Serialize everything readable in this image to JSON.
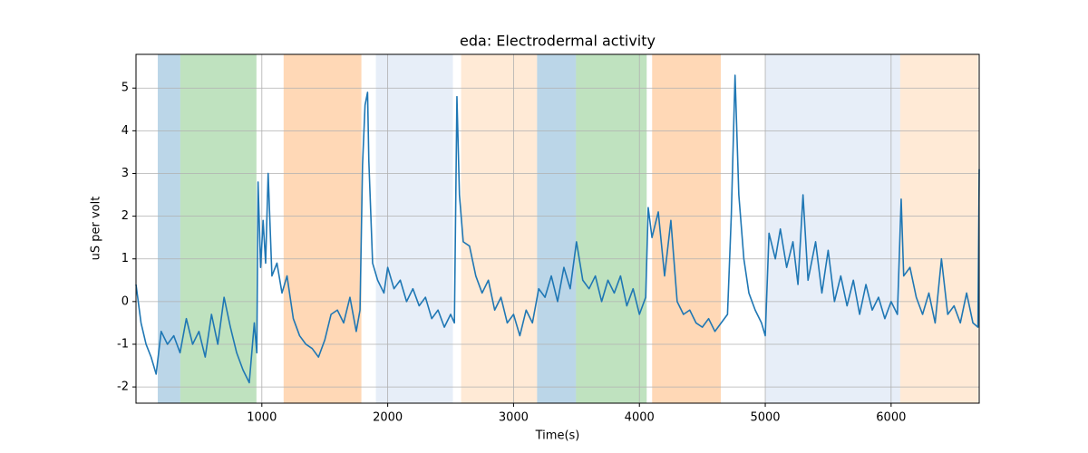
{
  "chart_data": {
    "type": "line",
    "title": "eda: Electrodermal activity",
    "xlabel": "Time(s)",
    "ylabel": "uS per volt",
    "xlim": [
      0,
      6700
    ],
    "ylim": [
      -2.38,
      5.79
    ],
    "xticks": [
      1000,
      2000,
      3000,
      4000,
      5000,
      6000
    ],
    "yticks": [
      -2,
      -1,
      0,
      1,
      2,
      3,
      4,
      5
    ],
    "grid": true,
    "spans": [
      {
        "start": 173,
        "end": 352,
        "color": "#1f77b4",
        "alpha": 0.3
      },
      {
        "start": 352,
        "end": 957,
        "color": "#2ca02c",
        "alpha": 0.3
      },
      {
        "start": 1173,
        "end": 1791,
        "color": "#ff7f0e",
        "alpha": 0.3
      },
      {
        "start": 1906,
        "end": 2518,
        "color": "#aec7e8",
        "alpha": 0.3
      },
      {
        "start": 2583,
        "end": 3187,
        "color": "#ffbb78",
        "alpha": 0.3
      },
      {
        "start": 3187,
        "end": 3496,
        "color": "#1f77b4",
        "alpha": 0.3
      },
      {
        "start": 3496,
        "end": 4058,
        "color": "#2ca02c",
        "alpha": 0.3
      },
      {
        "start": 4101,
        "end": 4647,
        "color": "#ff7f0e",
        "alpha": 0.3
      },
      {
        "start": 5000,
        "end": 6072,
        "color": "#aec7e8",
        "alpha": 0.3
      },
      {
        "start": 6072,
        "end": 6691,
        "color": "#ffbb78",
        "alpha": 0.3
      }
    ],
    "series": [
      {
        "color": "#1f77b4",
        "x": [
          0,
          40,
          80,
          120,
          160,
          200,
          250,
          300,
          350,
          400,
          450,
          500,
          550,
          600,
          650,
          700,
          750,
          800,
          850,
          900,
          940,
          960,
          970,
          990,
          1010,
          1030,
          1050,
          1080,
          1120,
          1160,
          1200,
          1250,
          1300,
          1350,
          1400,
          1450,
          1500,
          1550,
          1600,
          1650,
          1700,
          1750,
          1780,
          1800,
          1820,
          1840,
          1850,
          1880,
          1920,
          1970,
          2000,
          2050,
          2100,
          2150,
          2200,
          2250,
          2300,
          2350,
          2400,
          2450,
          2500,
          2530,
          2550,
          2570,
          2600,
          2650,
          2700,
          2750,
          2800,
          2850,
          2900,
          2950,
          3000,
          3050,
          3100,
          3150,
          3200,
          3250,
          3300,
          3350,
          3400,
          3450,
          3500,
          3550,
          3600,
          3650,
          3700,
          3750,
          3800,
          3850,
          3900,
          3950,
          4000,
          4050,
          4070,
          4100,
          4150,
          4200,
          4250,
          4300,
          4350,
          4400,
          4450,
          4500,
          4550,
          4600,
          4650,
          4700,
          4730,
          4760,
          4790,
          4830,
          4870,
          4920,
          4970,
          5000,
          5030,
          5080,
          5120,
          5170,
          5220,
          5260,
          5300,
          5340,
          5400,
          5450,
          5500,
          5550,
          5600,
          5650,
          5700,
          5750,
          5800,
          5850,
          5900,
          5950,
          6000,
          6050,
          6080,
          6100,
          6150,
          6200,
          6250,
          6300,
          6350,
          6400,
          6450,
          6500,
          6550,
          6600,
          6650,
          6690,
          6700
        ],
        "values": [
          0.4,
          -0.5,
          -1.0,
          -1.3,
          -1.7,
          -0.7,
          -1.0,
          -0.8,
          -1.2,
          -0.4,
          -1.0,
          -0.7,
          -1.3,
          -0.3,
          -1.0,
          0.1,
          -0.6,
          -1.2,
          -1.6,
          -1.9,
          -0.5,
          -1.2,
          2.8,
          0.8,
          1.9,
          0.9,
          3.0,
          0.6,
          0.9,
          0.2,
          0.6,
          -0.4,
          -0.8,
          -1.0,
          -1.1,
          -1.3,
          -0.9,
          -0.3,
          -0.2,
          -0.5,
          0.1,
          -0.7,
          -0.2,
          3.2,
          4.6,
          4.9,
          3.3,
          0.9,
          0.5,
          0.2,
          0.8,
          0.3,
          0.5,
          0.0,
          0.3,
          -0.1,
          0.1,
          -0.4,
          -0.2,
          -0.6,
          -0.3,
          -0.5,
          4.8,
          2.5,
          1.4,
          1.3,
          0.6,
          0.2,
          0.5,
          -0.2,
          0.1,
          -0.5,
          -0.3,
          -0.8,
          -0.2,
          -0.5,
          0.3,
          0.1,
          0.6,
          0.0,
          0.8,
          0.3,
          1.4,
          0.5,
          0.3,
          0.6,
          0.0,
          0.5,
          0.2,
          0.6,
          -0.1,
          0.3,
          -0.3,
          0.1,
          2.2,
          1.5,
          2.1,
          0.6,
          1.9,
          0.0,
          -0.3,
          -0.2,
          -0.5,
          -0.6,
          -0.4,
          -0.7,
          -0.5,
          -0.3,
          2.0,
          5.3,
          2.5,
          1.0,
          0.2,
          -0.2,
          -0.5,
          -0.8,
          1.6,
          1.0,
          1.7,
          0.8,
          1.4,
          0.4,
          2.5,
          0.5,
          1.4,
          0.2,
          1.2,
          0.0,
          0.6,
          -0.1,
          0.5,
          -0.3,
          0.4,
          -0.2,
          0.1,
          -0.4,
          0.0,
          -0.3,
          2.4,
          0.6,
          0.8,
          0.1,
          -0.3,
          0.2,
          -0.5,
          1.0,
          -0.3,
          -0.1,
          -0.5,
          0.2,
          -0.5,
          -0.6,
          3.1
        ]
      }
    ]
  }
}
